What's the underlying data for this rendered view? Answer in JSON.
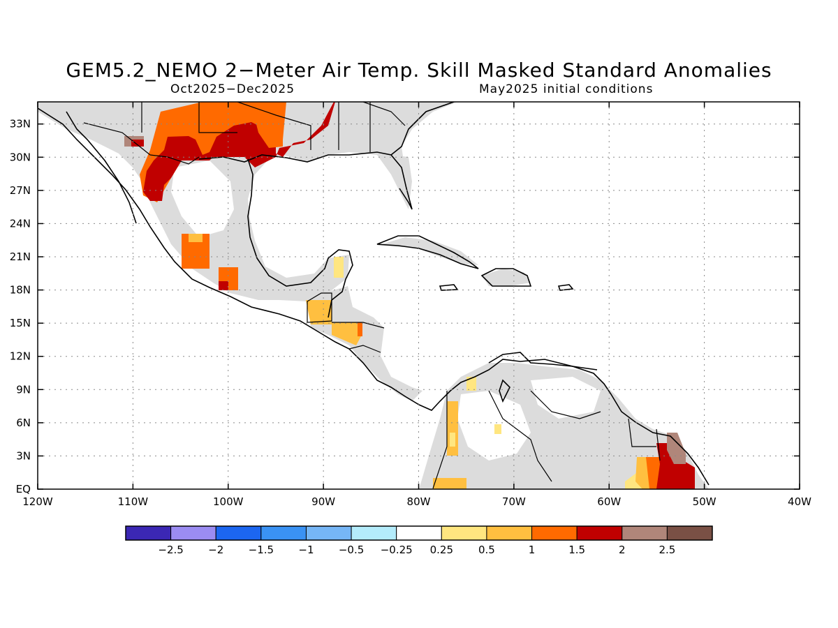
{
  "title": "GEM5.2_NEMO 2−Meter Air Temp. Skill Masked Standard Anomalies",
  "subtitle_left": "Oct2025−Dec2025",
  "subtitle_right": "May2025 initial conditions",
  "map": {
    "lon_range": [
      -120,
      -40
    ],
    "lat_range": [
      0,
      35
    ],
    "lon_ticks": [
      {
        "value": -120,
        "label": "120W"
      },
      {
        "value": -110,
        "label": "110W"
      },
      {
        "value": -100,
        "label": "100W"
      },
      {
        "value": -90,
        "label": "90W"
      },
      {
        "value": -80,
        "label": "80W"
      },
      {
        "value": -70,
        "label": "70W"
      },
      {
        "value": -60,
        "label": "60W"
      },
      {
        "value": -50,
        "label": "50W"
      },
      {
        "value": -40,
        "label": "40W"
      }
    ],
    "lat_ticks": [
      {
        "value": 0,
        "label": "EQ"
      },
      {
        "value": 3,
        "label": "3N"
      },
      {
        "value": 6,
        "label": "6N"
      },
      {
        "value": 9,
        "label": "9N"
      },
      {
        "value": 12,
        "label": "12N"
      },
      {
        "value": 15,
        "label": "15N"
      },
      {
        "value": 18,
        "label": "18N"
      },
      {
        "value": 21,
        "label": "21N"
      },
      {
        "value": 24,
        "label": "24N"
      },
      {
        "value": 27,
        "label": "27N"
      },
      {
        "value": 30,
        "label": "30N"
      },
      {
        "value": 33,
        "label": "33N"
      }
    ],
    "grid": "dotted",
    "colors": {
      "masked": "#dcdcdc",
      "c05": "#ffe680",
      "c1": "#ffbf40",
      "c15": "#ff6a00",
      "c2": "#c00000",
      "c25": "#b0867a"
    }
  },
  "colorbar": {
    "colors": [
      "#3b27b4",
      "#9b8cf2",
      "#1c66f0",
      "#3a92f4",
      "#76b6f6",
      "#b4ecfb",
      "#ffffff",
      "#ffe680",
      "#ffbf40",
      "#ff6a00",
      "#c00000",
      "#b0867a",
      "#7a5045"
    ],
    "labels": [
      "−2.5",
      "−2",
      "−1.5",
      "−1",
      "−0.5",
      "−0.25",
      "0.25",
      "0.5",
      "1",
      "1.5",
      "2",
      "2.5"
    ]
  }
}
